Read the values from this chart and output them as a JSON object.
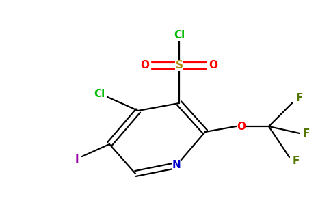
{
  "bg_color": "#ffffff",
  "atom_colors": {
    "C": "#000000",
    "N": "#0000cc",
    "O": "#ff0000",
    "S": "#aa8800",
    "Cl": "#00bb00",
    "F": "#557700",
    "I": "#9900aa"
  },
  "figsize": [
    4.84,
    3.0
  ],
  "dpi": 100,
  "lw": 1.6,
  "fontsize": 11
}
